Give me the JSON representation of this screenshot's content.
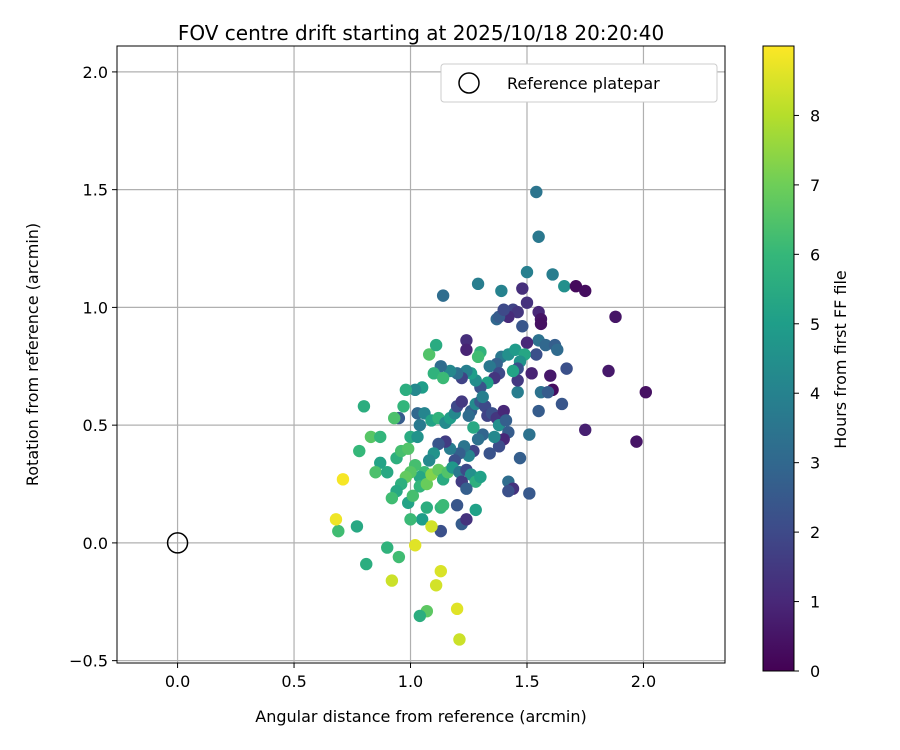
{
  "chart_data": {
    "type": "scatter",
    "title": "FOV centre drift starting at 2025/10/18 20:20:40",
    "xlabel": "Angular distance from reference (arcmin)",
    "ylabel": "Rotation from reference (arcmin)",
    "xlim": [
      -0.26,
      2.35
    ],
    "ylim": [
      -0.51,
      2.11
    ],
    "xticks": [
      0.0,
      0.5,
      1.0,
      1.5,
      2.0
    ],
    "xtick_labels": [
      "0.0",
      "0.5",
      "1.0",
      "1.5",
      "2.0"
    ],
    "yticks": [
      -0.5,
      0.0,
      0.5,
      1.0,
      1.5,
      2.0
    ],
    "ytick_labels": [
      "−0.5",
      "0.0",
      "0.5",
      "1.0",
      "1.5",
      "2.0"
    ],
    "grid": true,
    "legend": {
      "placement": "top-right",
      "entries": [
        "Reference platepar"
      ]
    },
    "reference_point": {
      "x": 0.0,
      "y": 0.0
    },
    "colorbar": {
      "label": "Hours from first FF file",
      "range": [
        0,
        9
      ],
      "ticks": [
        0,
        1,
        2,
        3,
        4,
        5,
        6,
        7,
        8
      ],
      "tick_labels": [
        "0",
        "1",
        "2",
        "3",
        "4",
        "5",
        "6",
        "7",
        "8"
      ]
    },
    "points": [
      [
        1.54,
        1.49,
        3.5
      ],
      [
        1.55,
        1.3,
        3.6
      ],
      [
        1.29,
        1.1,
        3.8
      ],
      [
        1.14,
        1.05,
        3.2
      ],
      [
        1.5,
        1.15,
        3.9
      ],
      [
        1.48,
        1.08,
        1.2
      ],
      [
        1.5,
        1.02,
        1.3
      ],
      [
        1.55,
        0.98,
        1.0
      ],
      [
        1.56,
        0.95,
        0.5
      ],
      [
        1.56,
        0.93,
        0.4
      ],
      [
        1.61,
        1.14,
        3.8
      ],
      [
        1.66,
        1.09,
        4.5
      ],
      [
        1.71,
        1.09,
        0.2
      ],
      [
        1.75,
        1.07,
        0.3
      ],
      [
        1.88,
        0.96,
        0.5
      ],
      [
        1.39,
        1.07,
        4.0
      ],
      [
        1.44,
        0.99,
        1.8
      ],
      [
        1.46,
        0.98,
        1.4
      ],
      [
        1.48,
        0.92,
        2.4
      ],
      [
        1.42,
        0.96,
        1.1
      ],
      [
        1.37,
        0.95,
        3.0
      ],
      [
        1.38,
        0.96,
        2.6
      ],
      [
        1.4,
        0.99,
        2.0
      ],
      [
        1.24,
        0.86,
        1.2
      ],
      [
        1.24,
        0.82,
        0.9
      ],
      [
        1.3,
        0.81,
        5.8
      ],
      [
        1.29,
        0.79,
        6.2
      ],
      [
        1.39,
        0.79,
        3.6
      ],
      [
        1.42,
        0.8,
        4.5
      ],
      [
        1.45,
        0.82,
        4.9
      ],
      [
        1.55,
        0.86,
        3.4
      ],
      [
        1.58,
        0.84,
        3.0
      ],
      [
        1.62,
        0.84,
        2.7
      ],
      [
        1.63,
        0.82,
        3.1
      ],
      [
        1.54,
        0.8,
        2.2
      ],
      [
        1.5,
        0.85,
        1.0
      ],
      [
        1.49,
        0.8,
        5.3
      ],
      [
        1.47,
        0.77,
        4.6
      ],
      [
        1.52,
        0.72,
        0.9
      ],
      [
        1.6,
        0.71,
        0.6
      ],
      [
        1.67,
        0.74,
        2.2
      ],
      [
        1.85,
        0.73,
        0.6
      ],
      [
        2.01,
        0.64,
        0.4
      ],
      [
        1.97,
        0.43,
        0.5
      ],
      [
        1.61,
        0.65,
        0.3
      ],
      [
        1.56,
        0.64,
        3.4
      ],
      [
        1.59,
        0.64,
        2.6
      ],
      [
        1.55,
        0.56,
        2.6
      ],
      [
        1.65,
        0.59,
        2.4
      ],
      [
        1.75,
        0.48,
        0.8
      ],
      [
        1.51,
        0.46,
        3.4
      ],
      [
        1.46,
        0.64,
        3.8
      ],
      [
        1.46,
        0.69,
        1.5
      ],
      [
        1.46,
        0.74,
        2.2
      ],
      [
        1.44,
        0.73,
        5.2
      ],
      [
        1.37,
        0.76,
        2.8
      ],
      [
        1.34,
        0.75,
        3.6
      ],
      [
        1.38,
        0.72,
        2.0
      ],
      [
        1.36,
        0.7,
        1.4
      ],
      [
        1.33,
        0.68,
        5.1
      ],
      [
        1.3,
        0.66,
        2.3
      ],
      [
        1.28,
        0.69,
        4.4
      ],
      [
        1.26,
        0.72,
        5.0
      ],
      [
        1.24,
        0.73,
        3.9
      ],
      [
        1.22,
        0.7,
        1.8
      ],
      [
        1.2,
        0.72,
        3.3
      ],
      [
        1.17,
        0.73,
        4.2
      ],
      [
        1.13,
        0.75,
        3.2
      ],
      [
        1.1,
        0.72,
        5.8
      ],
      [
        1.08,
        0.8,
        6.5
      ],
      [
        1.11,
        0.84,
        5.5
      ],
      [
        1.14,
        0.7,
        6.1
      ],
      [
        1.05,
        0.66,
        5.0
      ],
      [
        1.02,
        0.65,
        4.2
      ],
      [
        0.98,
        0.65,
        5.6
      ],
      [
        0.97,
        0.58,
        5.9
      ],
      [
        0.95,
        0.53,
        2.6
      ],
      [
        0.93,
        0.53,
        6.4
      ],
      [
        0.8,
        0.58,
        5.6
      ],
      [
        0.83,
        0.45,
        6.6
      ],
      [
        0.87,
        0.45,
        5.9
      ],
      [
        0.78,
        0.39,
        6.0
      ],
      [
        0.87,
        0.34,
        5.2
      ],
      [
        0.85,
        0.3,
        6.4
      ],
      [
        0.9,
        0.3,
        5.4
      ],
      [
        0.94,
        0.36,
        5.7
      ],
      [
        0.96,
        0.39,
        6.3
      ],
      [
        0.99,
        0.4,
        6.5
      ],
      [
        1.0,
        0.45,
        5.5
      ],
      [
        1.03,
        0.45,
        4.6
      ],
      [
        1.04,
        0.5,
        3.7
      ],
      [
        1.03,
        0.55,
        3.0
      ],
      [
        1.06,
        0.55,
        4.1
      ],
      [
        1.09,
        0.52,
        5.2
      ],
      [
        1.12,
        0.53,
        5.8
      ],
      [
        1.15,
        0.51,
        4.3
      ],
      [
        1.17,
        0.53,
        5.0
      ],
      [
        1.19,
        0.55,
        4.2
      ],
      [
        1.2,
        0.58,
        2.0
      ],
      [
        1.22,
        0.6,
        1.5
      ],
      [
        1.26,
        0.56,
        2.7
      ],
      [
        1.25,
        0.54,
        3.2
      ],
      [
        1.28,
        0.59,
        4.3
      ],
      [
        1.3,
        0.6,
        2.5
      ],
      [
        1.32,
        0.58,
        2.0
      ],
      [
        1.33,
        0.54,
        1.8
      ],
      [
        1.35,
        0.55,
        2.2
      ],
      [
        1.37,
        0.53,
        1.4
      ],
      [
        1.38,
        0.5,
        4.5
      ],
      [
        1.4,
        0.56,
        1.0
      ],
      [
        1.41,
        0.52,
        2.7
      ],
      [
        1.42,
        0.47,
        2.6
      ],
      [
        1.4,
        0.44,
        1.0
      ],
      [
        1.38,
        0.41,
        2.1
      ],
      [
        1.34,
        0.38,
        2.3
      ],
      [
        1.31,
        0.46,
        2.9
      ],
      [
        1.29,
        0.44,
        3.3
      ],
      [
        1.27,
        0.39,
        1.8
      ],
      [
        1.25,
        0.37,
        4.1
      ],
      [
        1.23,
        0.41,
        3.5
      ],
      [
        1.21,
        0.38,
        2.7
      ],
      [
        1.19,
        0.35,
        2.2
      ],
      [
        1.17,
        0.4,
        3.8
      ],
      [
        1.15,
        0.43,
        1.6
      ],
      [
        1.12,
        0.42,
        2.4
      ],
      [
        1.1,
        0.38,
        4.6
      ],
      [
        1.08,
        0.35,
        4.2
      ],
      [
        1.06,
        0.3,
        6.1
      ],
      [
        1.04,
        0.28,
        5.3
      ],
      [
        1.02,
        0.33,
        6.3
      ],
      [
        1.0,
        0.3,
        6.6
      ],
      [
        0.98,
        0.28,
        6.8
      ],
      [
        0.96,
        0.25,
        5.7
      ],
      [
        0.94,
        0.22,
        5.4
      ],
      [
        0.92,
        0.19,
        6.2
      ],
      [
        0.99,
        0.17,
        5.2
      ],
      [
        1.01,
        0.2,
        6.3
      ],
      [
        1.04,
        0.24,
        5.9
      ],
      [
        1.07,
        0.25,
        6.9
      ],
      [
        1.09,
        0.29,
        7.3
      ],
      [
        1.12,
        0.31,
        6.8
      ],
      [
        1.14,
        0.27,
        5.5
      ],
      [
        1.16,
        0.3,
        6.5
      ],
      [
        1.18,
        0.32,
        4.8
      ],
      [
        1.21,
        0.3,
        3.6
      ],
      [
        1.24,
        0.31,
        2.0
      ],
      [
        1.26,
        0.29,
        4.5
      ],
      [
        1.28,
        0.26,
        5.7
      ],
      [
        1.3,
        0.28,
        5.1
      ],
      [
        1.22,
        0.26,
        1.6
      ],
      [
        1.24,
        0.23,
        2.7
      ],
      [
        1.2,
        0.16,
        2.4
      ],
      [
        1.42,
        0.26,
        3.2
      ],
      [
        1.44,
        0.23,
        1.3
      ],
      [
        1.42,
        0.22,
        2.2
      ],
      [
        1.51,
        0.21,
        2.5
      ],
      [
        1.47,
        0.36,
        2.7
      ],
      [
        1.28,
        0.14,
        5.1
      ],
      [
        1.22,
        0.08,
        2.6
      ],
      [
        1.24,
        0.1,
        1.3
      ],
      [
        1.13,
        0.15,
        5.9
      ],
      [
        1.14,
        0.16,
        6.1
      ],
      [
        1.07,
        0.15,
        5.6
      ],
      [
        1.05,
        0.1,
        5.0
      ],
      [
        1.0,
        0.1,
        6.1
      ],
      [
        1.13,
        0.05,
        2.2
      ],
      [
        1.09,
        0.07,
        8.4
      ],
      [
        1.02,
        -0.01,
        8.6
      ],
      [
        0.95,
        -0.06,
        6.2
      ],
      [
        0.9,
        -0.02,
        5.8
      ],
      [
        0.77,
        0.07,
        5.4
      ],
      [
        0.69,
        0.05,
        6.2
      ],
      [
        0.68,
        0.1,
        8.8
      ],
      [
        0.71,
        0.27,
        8.9
      ],
      [
        0.81,
        -0.09,
        5.6
      ],
      [
        0.92,
        -0.16,
        8.3
      ],
      [
        1.11,
        -0.18,
        8.4
      ],
      [
        1.13,
        -0.12,
        8.5
      ],
      [
        1.2,
        -0.28,
        8.6
      ],
      [
        1.21,
        -0.41,
        8.3
      ],
      [
        1.07,
        -0.29,
        6.7
      ],
      [
        1.04,
        -0.31,
        5.6
      ],
      [
        1.36,
        0.45,
        4.2
      ],
      [
        1.31,
        0.62,
        3.9
      ],
      [
        1.27,
        0.49,
        5.4
      ]
    ]
  }
}
